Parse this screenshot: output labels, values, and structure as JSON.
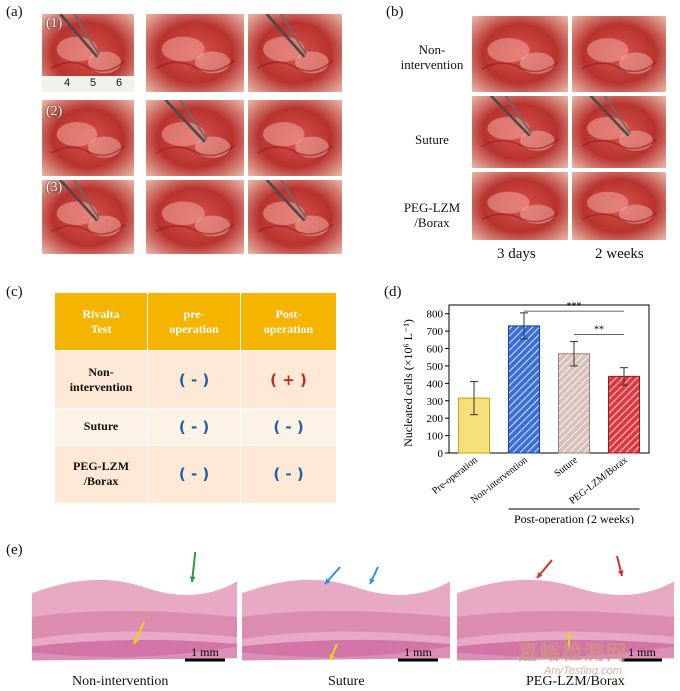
{
  "panels": {
    "a": "(a)",
    "b": "(b)",
    "c": "(c)",
    "d": "(d)",
    "e": "(e)"
  },
  "panel_a": {
    "rows": [
      "(1)",
      "(2)",
      "(3)"
    ],
    "ruler_numbers": [
      "4",
      "5",
      "6"
    ]
  },
  "panel_b": {
    "rows": [
      "Non-\nintervention",
      "Suture",
      "PEG-LZM\n/Borax"
    ],
    "columns": [
      "3 days",
      "2 weeks"
    ]
  },
  "panel_c": {
    "header": [
      "Rivalta\nTest",
      "pre-\noperation",
      "Post-\noperation"
    ],
    "rows": [
      {
        "label": "Non-\nintervention",
        "pre": "( - )",
        "post": "( + )"
      },
      {
        "label": "Suture",
        "pre": "( - )",
        "post": "( - )"
      },
      {
        "label": "PEG-LZM\n/Borax",
        "pre": "( - )",
        "post": "( - )"
      }
    ],
    "colors": {
      "header": "#f5b400",
      "row_dark": "#fde9d5",
      "row_light": "#fdf2e6",
      "negative": "#1f5fa8",
      "positive": "#c62828"
    }
  },
  "chart_data": {
    "type": "bar",
    "categories": [
      "Pre-operation",
      "Non-intervention",
      "Suture",
      "PEG-LZM/Borax"
    ],
    "values": [
      315,
      730,
      570,
      440
    ],
    "errors": [
      95,
      75,
      70,
      50
    ],
    "colors": [
      "#f7df7c",
      "#3b6fd8",
      "#d7c1bd",
      "#e0383e"
    ],
    "hatched": [
      false,
      true,
      true,
      true
    ],
    "ylabel": "Nucleated cells (×10⁶ L⁻¹)",
    "xgroup_label": "Post-operation (2 weeks)",
    "ylim": [
      0,
      850
    ],
    "yticks": [
      0,
      100,
      200,
      300,
      400,
      500,
      600,
      700,
      800
    ],
    "significance": [
      {
        "from": "Non-intervention",
        "to": "PEG-LZM/Borax",
        "label": "***"
      },
      {
        "from": "Suture",
        "to": "PEG-LZM/Borax",
        "label": "**"
      }
    ]
  },
  "panel_e": {
    "captions": [
      "Non-intervention",
      "Suture",
      "PEG-LZM/Borax"
    ],
    "scale_bar": "1 mm",
    "watermark": [
      "嘉峪检测网",
      "AnyTesting.com"
    ]
  }
}
